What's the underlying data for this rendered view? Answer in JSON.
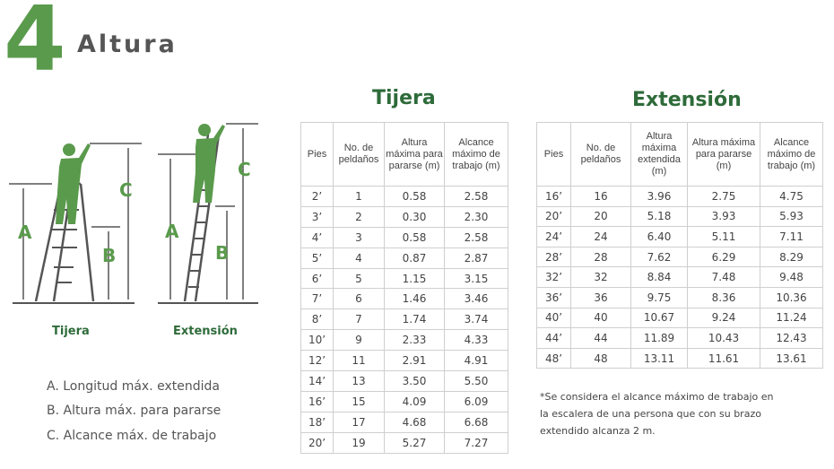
{
  "header": {
    "number": "4",
    "title": "Altura"
  },
  "figures": {
    "tijera_caption": "Tijera",
    "extension_caption": "Extensión",
    "labels": {
      "a": "A",
      "b": "B",
      "c": "C"
    }
  },
  "legend": [
    "A.  Longitud máx. extendida",
    "B.  Altura máx. para pararse",
    "C.  Alcance máx. de trabajo"
  ],
  "tijera": {
    "title": "Tijera",
    "headers": [
      "Pies",
      "No. de peldaños",
      "Altura máxima para pararse (m)",
      "Alcance máximo de trabajo (m)"
    ],
    "rows": [
      [
        "2’",
        "1",
        "0.58",
        "2.58"
      ],
      [
        "3’",
        "2",
        "0.30",
        "2.30"
      ],
      [
        "4’",
        "3",
        "0.58",
        "2.58"
      ],
      [
        "5’",
        "4",
        "0.87",
        "2.87"
      ],
      [
        "6’",
        "5",
        "1.15",
        "3.15"
      ],
      [
        "7’",
        "6",
        "1.46",
        "3.46"
      ],
      [
        "8’",
        "7",
        "1.74",
        "3.74"
      ],
      [
        "10’",
        "9",
        "2.33",
        "4.33"
      ],
      [
        "12’",
        "11",
        "2.91",
        "4.91"
      ],
      [
        "14’",
        "13",
        "3.50",
        "5.50"
      ],
      [
        "16’",
        "15",
        "4.09",
        "6.09"
      ],
      [
        "18’",
        "17",
        "4.68",
        "6.68"
      ],
      [
        "20’",
        "19",
        "5.27",
        "7.27"
      ]
    ]
  },
  "extension": {
    "title": "Extensión",
    "headers": [
      "Pies",
      "No. de peldaños",
      "Altura máxima extendida (m)",
      "Altura máxima para pararse (m)",
      "Alcance máximo de trabajo (m)"
    ],
    "rows": [
      [
        "16’",
        "16",
        "3.96",
        "2.75",
        "4.75"
      ],
      [
        "20’",
        "20",
        "5.18",
        "3.93",
        "5.93"
      ],
      [
        "24’",
        "24",
        "6.40",
        "5.11",
        "7.11"
      ],
      [
        "28’",
        "28",
        "7.62",
        "6.29",
        "8.29"
      ],
      [
        "32’",
        "32",
        "8.84",
        "7.48",
        "9.48"
      ],
      [
        "36’",
        "36",
        "9.75",
        "8.36",
        "10.36"
      ],
      [
        "40’",
        "40",
        "10.67",
        "9.24",
        "11.24"
      ],
      [
        "44’",
        "44",
        "11.89",
        "10.43",
        "12.43"
      ],
      [
        "48’",
        "48",
        "13.11",
        "11.61",
        "13.61"
      ]
    ]
  },
  "note": "*Se considera el alcance máximo de trabajo en la escalera de una persona que con su brazo extendido alcanza 2 m.",
  "colors": {
    "green": "#5a9a4c",
    "dark_green": "#2e6b3a",
    "grid": "#cfcfcf"
  }
}
